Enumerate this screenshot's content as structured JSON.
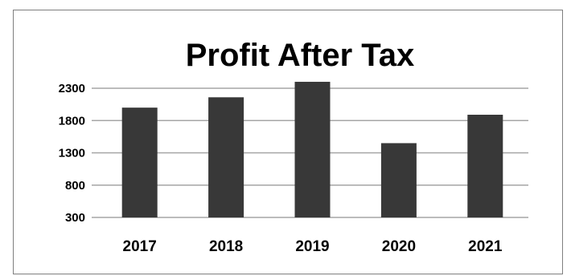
{
  "chart_data": {
    "type": "bar",
    "title": "Profit After Tax",
    "categories": [
      "2017",
      "2018",
      "2019",
      "2020",
      "2021"
    ],
    "values": [
      2000,
      2160,
      2400,
      1450,
      1890
    ],
    "ylim": [
      300,
      2550
    ],
    "yticks": [
      300,
      800,
      1300,
      1800,
      2300
    ],
    "grid": true,
    "legend": "none",
    "bar_color": "#383838",
    "grid_color": "#a6a6a6"
  }
}
